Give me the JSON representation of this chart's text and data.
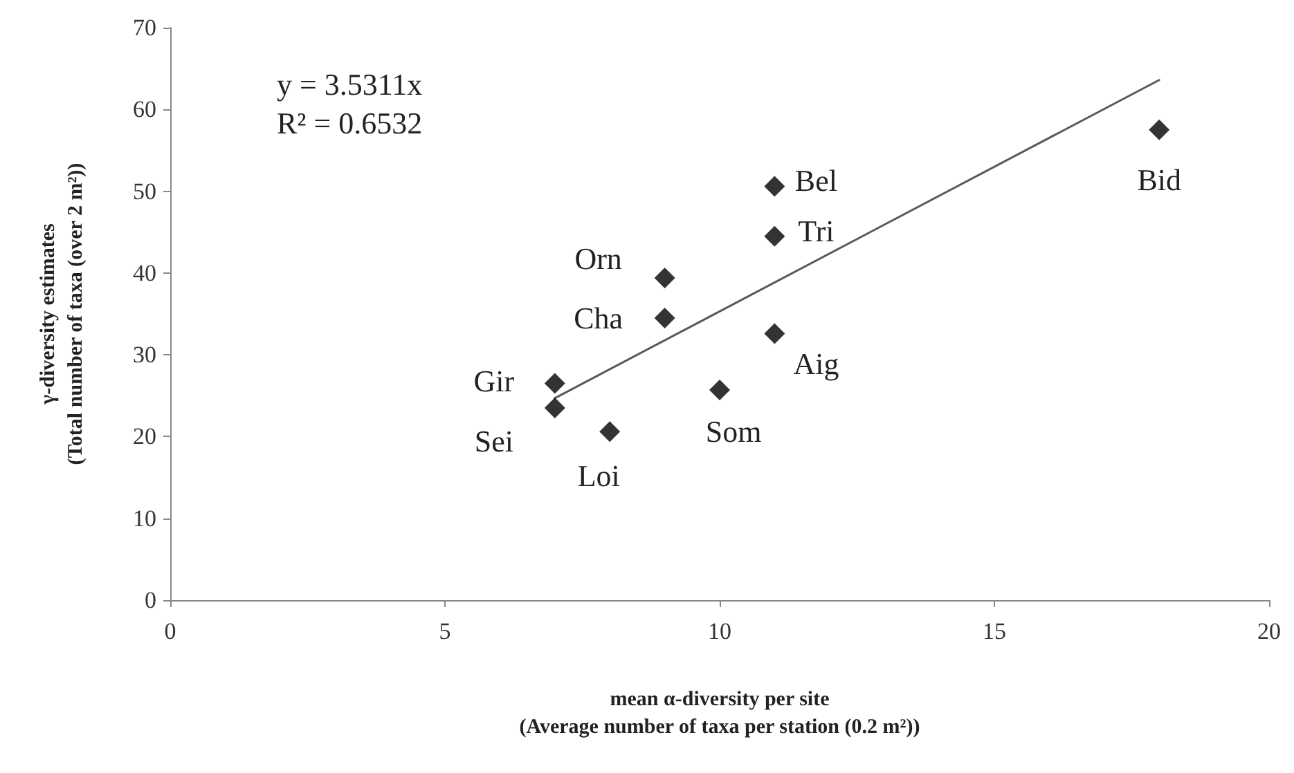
{
  "chart_data": {
    "type": "scatter",
    "xlabel": "mean α-diversity per site\n(Average number of taxa per station (0.2 m²))",
    "ylabel": "γ-diversity estimates\n(Total number of taxa (over 2 m²))",
    "series": [
      {
        "color": "#000000",
        "marker": "diamond",
        "x": [
          18,
          11,
          11,
          11,
          9,
          9,
          10,
          7,
          7,
          8
        ],
        "values": [
          57.5,
          50.6,
          44.5,
          32.6,
          39.4,
          34.5,
          25.7,
          26.5,
          23.5,
          20.6
        ]
      },
      {
        "type": "line",
        "color": "#595959",
        "marker": "none",
        "x": [
          7,
          18
        ],
        "values": [
          24.7,
          63.6
        ]
      }
    ],
    "annotations": [
      "y = 3.5311x",
      "R² = 0.6532",
      {
        "text": "Bid",
        "x": 18,
        "y": 57.5
      },
      {
        "text": "Bel",
        "x": 11,
        "y": 50.6
      },
      {
        "text": "Tri",
        "x": 11,
        "y": 44.5
      },
      {
        "text": "Aig",
        "x": 11,
        "y": 32.6
      },
      {
        "text": "Orn",
        "x": 9,
        "y": 39.4
      },
      {
        "text": "Cha",
        "x": 9,
        "y": 34.5
      },
      {
        "text": "Som",
        "x": 10,
        "y": 25.7
      },
      {
        "text": "Gir",
        "x": 7,
        "y": 26.5
      },
      {
        "text": "Sei",
        "x": 7,
        "y": 23.5
      },
      {
        "text": "Loi",
        "x": 8,
        "y": 20.6
      }
    ],
    "xlim": [
      0,
      20
    ],
    "xticks": [
      0,
      5,
      10,
      15,
      20
    ],
    "ylim": [
      0,
      70
    ],
    "yticks": [
      0,
      10,
      20,
      30,
      40,
      50,
      60,
      70
    ],
    "grid": false
  }
}
